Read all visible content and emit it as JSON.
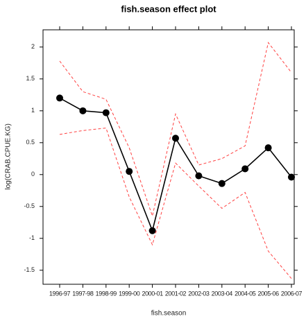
{
  "chart_data": {
    "type": "line",
    "title": "fish.season effect plot",
    "x_label": "fish.season",
    "y_label": "log(CRAB.CPUE.KG)",
    "categories": [
      "1996-97",
      "1997-98",
      "1998-99",
      "1999-00",
      "2000-01",
      "2001-02",
      "2002-03",
      "2003-04",
      "2004-05",
      "2005-06",
      "2006-07"
    ],
    "series": [
      {
        "color": "#000000",
        "linestyle": "solid",
        "markers": true,
        "values": [
          1.2,
          1.0,
          0.97,
          0.05,
          -0.88,
          0.57,
          -0.02,
          -0.14,
          0.09,
          0.42,
          -0.04
        ]
      },
      {
        "color": "#ff4040",
        "linestyle": "dashed",
        "markers": false,
        "values": [
          1.78,
          1.3,
          1.18,
          0.42,
          -0.65,
          0.95,
          0.15,
          0.25,
          0.45,
          2.07,
          1.6
        ]
      },
      {
        "color": "#ff4040",
        "linestyle": "dashed",
        "markers": false,
        "values": [
          0.63,
          0.69,
          0.73,
          -0.35,
          -1.1,
          0.18,
          -0.18,
          -0.53,
          -0.28,
          -1.2,
          -1.63
        ]
      }
    ],
    "ylim": [
      -1.72,
      2.27
    ],
    "yticks": [
      -1.5,
      -1,
      -0.5,
      0,
      0.5,
      1,
      1.5,
      2
    ]
  }
}
